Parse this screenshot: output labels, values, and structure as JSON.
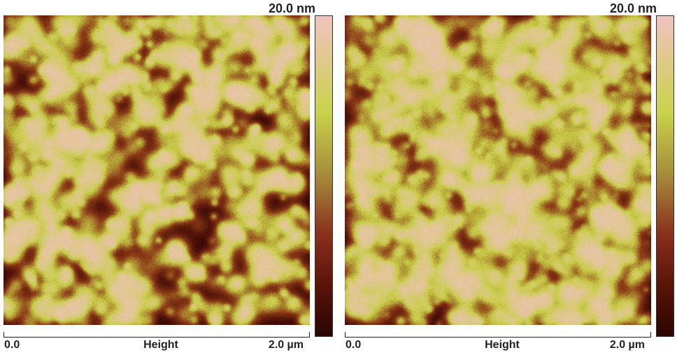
{
  "panels": [
    {
      "scale_max": "20.0 nm",
      "axis_min": "0.0",
      "axis_title": "Height",
      "axis_max": "2.0 µm"
    },
    {
      "scale_max": "20.0 nm",
      "axis_min": "0.0",
      "axis_title": "Height",
      "axis_max": "2.0 µm"
    }
  ],
  "colors": {
    "low": "#3a0604",
    "mid": "#8b3a16",
    "high": "#c9cf48",
    "peak": "#f0c2c0"
  }
}
